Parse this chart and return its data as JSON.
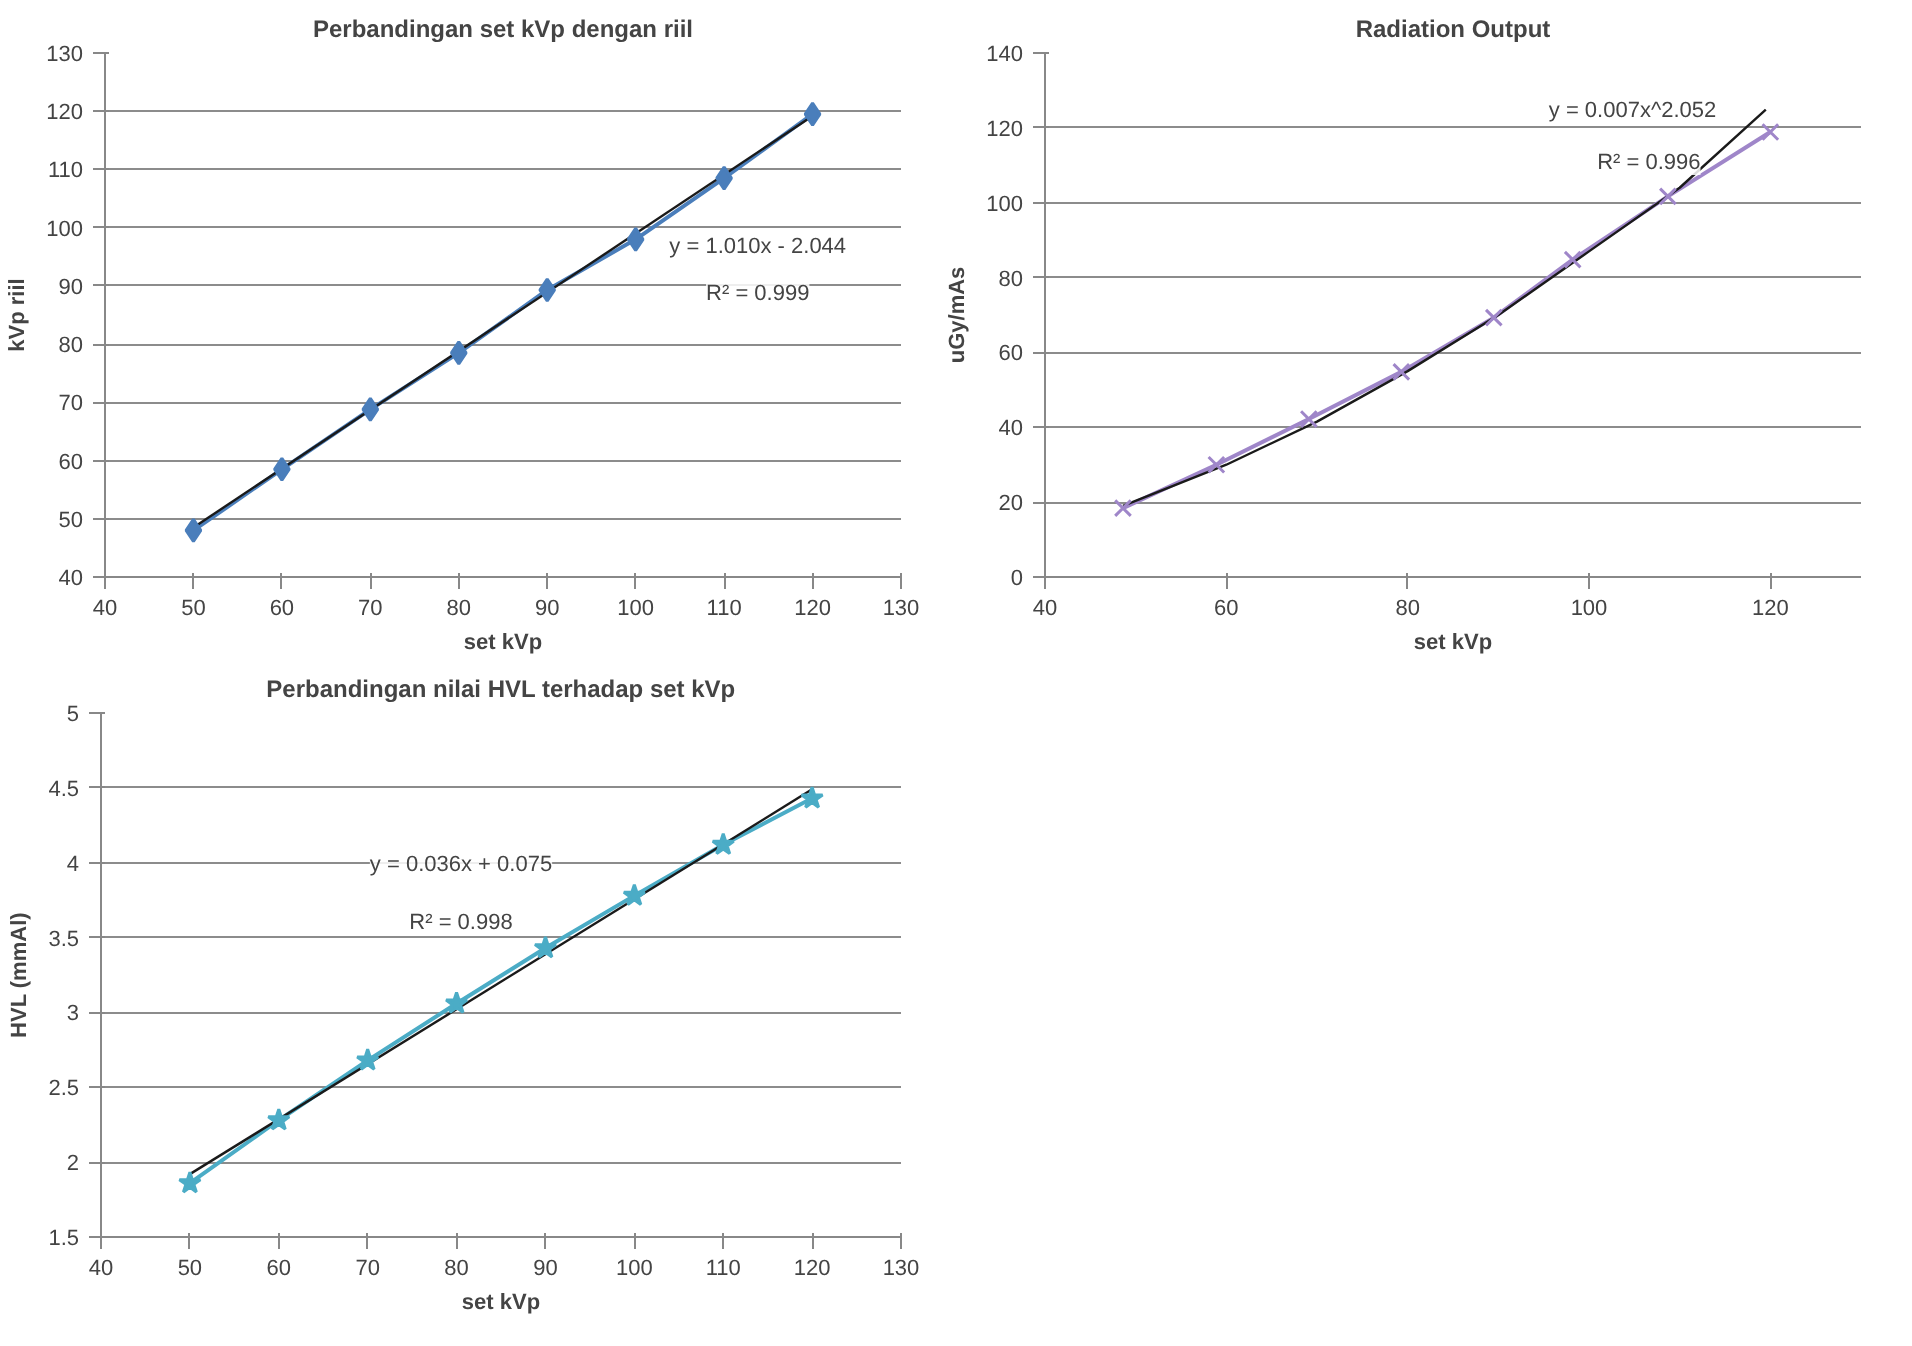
{
  "chart_data": [
    {
      "type": "line",
      "title": "Perbandingan set kVp dengan riil",
      "xlabel": "set kVp",
      "ylabel": "kVp riil",
      "xlim": [
        40,
        130
      ],
      "xticks": [
        40,
        50,
        60,
        70,
        80,
        90,
        100,
        110,
        120,
        130
      ],
      "ylim": [
        40,
        130
      ],
      "yticks": [
        40,
        50,
        60,
        70,
        80,
        90,
        100,
        110,
        120,
        130
      ],
      "grid": "y",
      "series": [
        {
          "color": "#4a7ebb",
          "marker": "diamond",
          "x": [
            50,
            60,
            70,
            80,
            90,
            100,
            110,
            120
          ],
          "values": [
            48,
            58.5,
            68.8,
            78.5,
            89.3,
            98,
            108.5,
            119.5
          ]
        },
        {
          "color": "#1a1a1a",
          "marker": "none",
          "x": [
            50,
            120
          ],
          "values": [
            48.5,
            119.2
          ]
        }
      ],
      "annotations": [
        "y = 1.010x - 2.044",
        "R² = 0.999"
      ]
    },
    {
      "type": "line",
      "title": "Radiation Output",
      "xlabel": "set kVp",
      "ylabel": "uGy/mAs",
      "xlim": [
        40,
        130
      ],
      "xticks": [
        40,
        60,
        80,
        100,
        120
      ],
      "ylim": [
        0,
        140
      ],
      "yticks": [
        0,
        20,
        40,
        60,
        80,
        100,
        120,
        140
      ],
      "grid": "y",
      "series": [
        {
          "color": "#9f86c9",
          "marker": "cross",
          "x": [
            48.6,
            58.9,
            69.1,
            79.3,
            89.5,
            98.2,
            108.7,
            120
          ],
          "values": [
            18.4,
            30,
            42.2,
            54.8,
            69.3,
            84.8,
            101.7,
            118.9
          ]
        },
        {
          "color": "#1a1a1a",
          "marker": "none",
          "x": [
            48.6,
            60,
            70,
            80,
            90,
            100,
            110,
            119.5
          ],
          "values": [
            19,
            30,
            41.5,
            55,
            70,
            87,
            104,
            124.9
          ]
        }
      ],
      "annotations": [
        "y = 0.007x^2.052",
        "R² = 0.996"
      ]
    },
    {
      "type": "line",
      "title": "Perbandingan nilai HVL terhadap set kVp",
      "xlabel": "set kVp",
      "ylabel": "HVL (mmAl)",
      "xlim": [
        40,
        130
      ],
      "xticks": [
        40,
        50,
        60,
        70,
        80,
        90,
        100,
        110,
        120,
        130
      ],
      "ylim": [
        1.5,
        5
      ],
      "yticks": [
        1.5,
        2,
        2.5,
        3,
        3.5,
        4,
        4.5,
        5
      ],
      "grid": "y",
      "series": [
        {
          "color": "#4bacc6",
          "marker": "star",
          "x": [
            50,
            60,
            70,
            80,
            90,
            100,
            110,
            120
          ],
          "values": [
            1.86,
            2.28,
            2.68,
            3.06,
            3.43,
            3.78,
            4.12,
            4.43
          ]
        },
        {
          "color": "#1a1a1a",
          "marker": "none",
          "x": [
            50,
            120
          ],
          "values": [
            1.92,
            4.49
          ]
        }
      ],
      "annotations": [
        "y = 0.036x + 0.075",
        "R² = 0.998"
      ]
    }
  ]
}
